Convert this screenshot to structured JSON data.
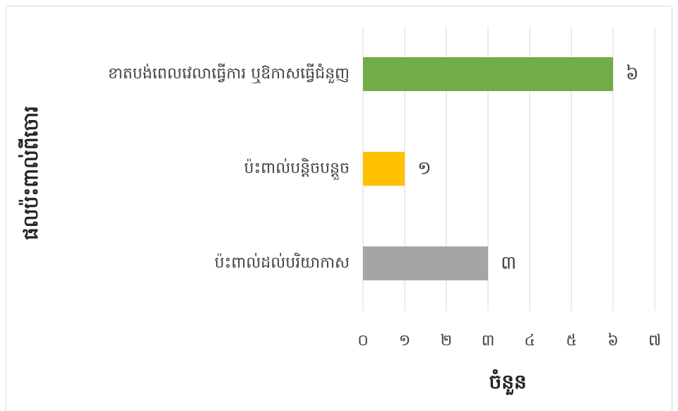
{
  "chart_data": {
    "type": "hbar",
    "categories": [
      "ខាតបង់ពេលវេលាធ្វើការ ឬឱកាសធ្វើជំនួញ",
      "ប៉ះពាល់បន្តិចបន្តួច",
      "ប៉ះពាល់ដល់បរិយាកាស"
    ],
    "values": [
      6,
      1,
      3
    ],
    "value_labels": [
      "៦",
      "១",
      "៣"
    ],
    "colors": [
      "#70ad47",
      "#ffc000",
      "#a5a5a5"
    ],
    "x_label": "ចំនួន",
    "y_label": "ផលប៉ះពាល់ពីចោរ",
    "xlim": [
      0,
      7
    ],
    "xticks": [
      {
        "value": 0,
        "label": "០"
      },
      {
        "value": 1,
        "label": "១"
      },
      {
        "value": 2,
        "label": "២"
      },
      {
        "value": 3,
        "label": "៣"
      },
      {
        "value": 4,
        "label": "៤"
      },
      {
        "value": 5,
        "label": "៥"
      },
      {
        "value": 6,
        "label": "៦"
      },
      {
        "value": 7,
        "label": "៧"
      }
    ],
    "grid": true
  }
}
